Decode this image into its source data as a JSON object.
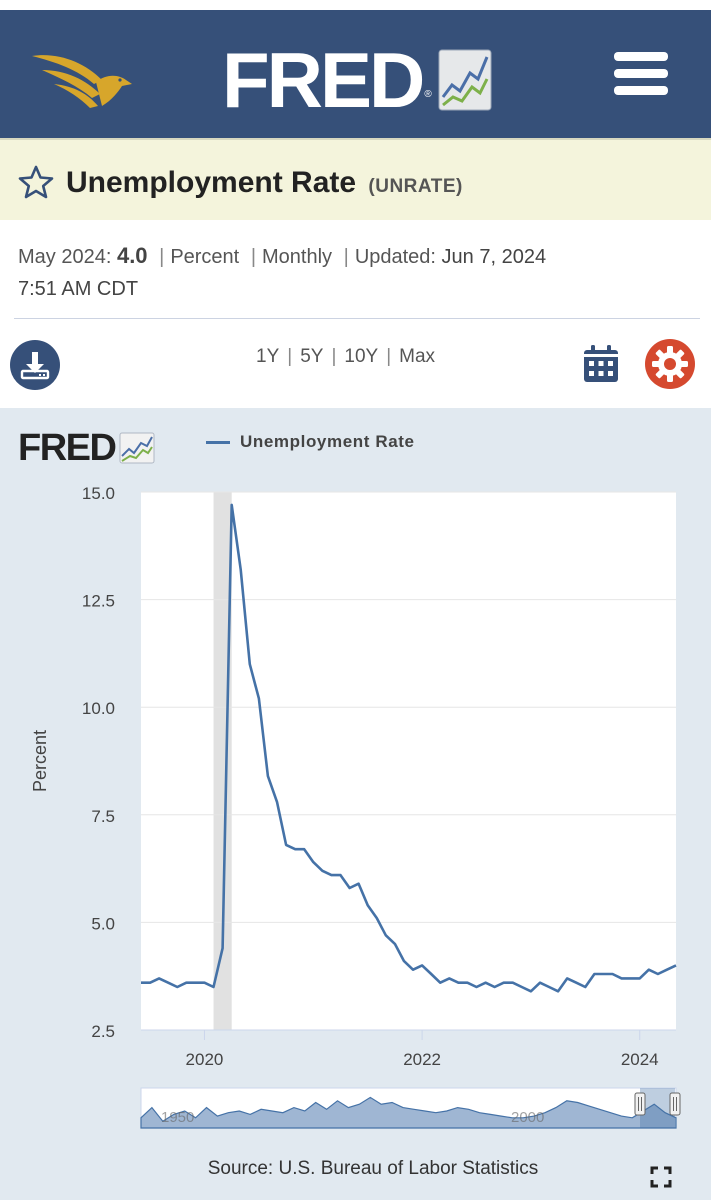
{
  "header": {
    "logo_text": "FRED",
    "icons": {
      "eagle": "eagle-logo",
      "menu": "hamburger-menu-icon"
    },
    "colors": {
      "bar": "#365079",
      "eagle": "#d7a62b"
    }
  },
  "title": {
    "name": "Unemployment Rate",
    "series_id": "(UNRATE)"
  },
  "meta": {
    "date": "May 2024:",
    "value": "4.0",
    "units": "Percent",
    "frequency": "Monthly",
    "updated_label": "Updated:",
    "updated_value": "Jun 7, 2024",
    "updated_time": "7:51 AM CDT"
  },
  "controls": {
    "ranges": [
      "1Y",
      "5Y",
      "10Y",
      "Max"
    ],
    "icons": {
      "download": "download-icon",
      "calendar": "calendar-icon",
      "settings": "gear-icon"
    },
    "colors": {
      "download": "#365079",
      "calendar": "#365079",
      "settings": "#d5492f"
    }
  },
  "chart_panel": {
    "logo_text": "FRED",
    "legend": "Unemployment Rate",
    "source": "Source: U.S. Bureau of Labor Statistics"
  },
  "chart_data": {
    "type": "line",
    "title": "",
    "xlabel": "",
    "ylabel": "Percent",
    "x": [
      "2019-06",
      "2019-07",
      "2019-08",
      "2019-09",
      "2019-10",
      "2019-11",
      "2019-12",
      "2020-01",
      "2020-02",
      "2020-03",
      "2020-04",
      "2020-05",
      "2020-06",
      "2020-07",
      "2020-08",
      "2020-09",
      "2020-10",
      "2020-11",
      "2020-12",
      "2021-01",
      "2021-02",
      "2021-03",
      "2021-04",
      "2021-05",
      "2021-06",
      "2021-07",
      "2021-08",
      "2021-09",
      "2021-10",
      "2021-11",
      "2021-12",
      "2022-01",
      "2022-02",
      "2022-03",
      "2022-04",
      "2022-05",
      "2022-06",
      "2022-07",
      "2022-08",
      "2022-09",
      "2022-10",
      "2022-11",
      "2022-12",
      "2023-01",
      "2023-02",
      "2023-03",
      "2023-04",
      "2023-05",
      "2023-06",
      "2023-07",
      "2023-08",
      "2023-09",
      "2023-10",
      "2023-11",
      "2023-12",
      "2024-01",
      "2024-02",
      "2024-03",
      "2024-04",
      "2024-05"
    ],
    "series": [
      {
        "name": "Unemployment Rate",
        "color": "#4572a7",
        "values": [
          3.6,
          3.6,
          3.7,
          3.6,
          3.5,
          3.6,
          3.6,
          3.6,
          3.5,
          4.4,
          14.7,
          13.2,
          11.0,
          10.2,
          8.4,
          7.8,
          6.8,
          6.7,
          6.7,
          6.4,
          6.2,
          6.1,
          6.1,
          5.8,
          5.9,
          5.4,
          5.1,
          4.7,
          4.5,
          4.1,
          3.9,
          4.0,
          3.8,
          3.6,
          3.7,
          3.6,
          3.6,
          3.5,
          3.6,
          3.5,
          3.6,
          3.6,
          3.5,
          3.4,
          3.6,
          3.5,
          3.4,
          3.7,
          3.6,
          3.5,
          3.8,
          3.8,
          3.8,
          3.7,
          3.7,
          3.7,
          3.9,
          3.8,
          3.9,
          4.0
        ]
      }
    ],
    "ylim": [
      2.5,
      15.0
    ],
    "yticks": [
      "15.0",
      "12.5",
      "10.0",
      "7.5",
      "5.0",
      "2.5"
    ],
    "xticks": [
      {
        "label": "2020",
        "x": "2020-01"
      },
      {
        "label": "2022",
        "x": "2022-01"
      },
      {
        "label": "2024",
        "x": "2024-01"
      }
    ],
    "recession": {
      "start": "2020-02",
      "end": "2020-04"
    },
    "grid": true,
    "navigator": {
      "labels": [
        "1950",
        "2000"
      ]
    }
  }
}
